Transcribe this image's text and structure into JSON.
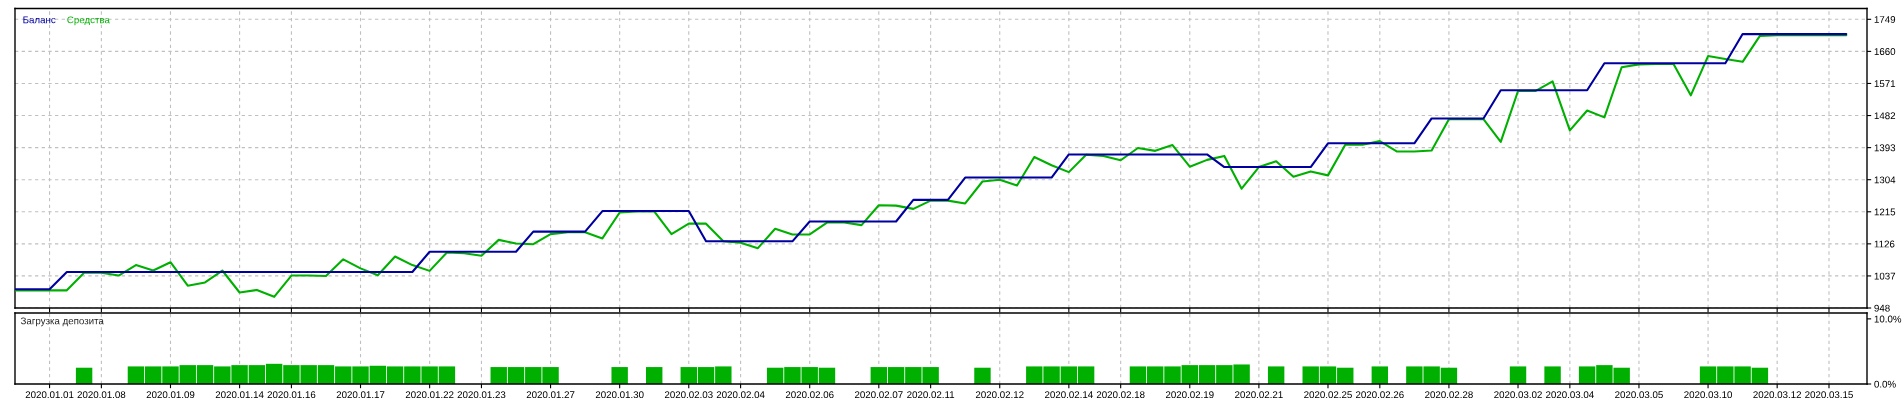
{
  "chart_data": [
    {
      "type": "line",
      "legend": "top left",
      "grid": true,
      "tick_labels": "y",
      "categories": [
        null,
        null,
        "2020.01.01",
        null,
        null,
        "2020.01.08",
        null,
        null,
        null,
        "2020.01.09",
        null,
        null,
        null,
        "2020.01.14",
        null,
        null,
        "2020.01.16",
        null,
        null,
        null,
        "2020.01.17",
        null,
        null,
        null,
        "2020.01.22",
        null,
        null,
        "2020.01.23",
        null,
        null,
        null,
        "2020.01.27",
        null,
        null,
        null,
        "2020.01.30",
        null,
        null,
        null,
        "2020.02.03",
        null,
        null,
        "2020.02.04",
        null,
        null,
        null,
        "2020.02.06",
        null,
        null,
        null,
        "2020.02.07",
        null,
        null,
        "2020.02.11",
        null,
        null,
        null,
        "2020.02.12",
        null,
        null,
        null,
        "2020.02.14",
        null,
        null,
        "2020.02.18",
        null,
        null,
        null,
        "2020.02.19",
        null,
        null,
        null,
        "2020.02.21",
        null,
        null,
        null,
        "2020.02.25",
        null,
        null,
        "2020.02.26",
        null,
        null,
        null,
        "2020.02.28",
        null,
        null,
        null,
        "2020.03.02",
        null,
        null,
        "2020.03.04",
        null,
        null,
        null,
        "2020.03.05",
        null,
        null,
        null,
        "2020.03.10",
        null,
        null,
        null,
        "2020.03.12",
        null,
        null,
        "2020.03.15",
        null
      ],
      "series": [
        {
          "name": "Баланс",
          "color": "#0000a0",
          "values": [
            1000,
            1000,
            1000,
            1048,
            1048,
            1048,
            1048,
            1048,
            1048,
            1048,
            1048,
            1048,
            1048,
            1048,
            1048,
            1048,
            1048,
            1048,
            1048,
            1048,
            1048,
            1048,
            1048,
            1048,
            1104,
            1104,
            1104,
            1104,
            1104,
            1104,
            1160,
            1160,
            1160,
            1160,
            1217,
            1217,
            1217,
            1217,
            1217,
            1217,
            1133,
            1133,
            1133,
            1133,
            1133,
            1133,
            1188,
            1188,
            1188,
            1188,
            1188,
            1188,
            1248,
            1248,
            1248,
            1310,
            1310,
            1310,
            1310,
            1310,
            1310,
            1374,
            1374,
            1374,
            1374,
            1374,
            1374,
            1374,
            1374,
            1374,
            1339,
            1339,
            1339,
            1339,
            1339,
            1339,
            1405,
            1405,
            1405,
            1405,
            1405,
            1405,
            1474,
            1474,
            1474,
            1474,
            1552,
            1552,
            1552,
            1552,
            1552,
            1552,
            1627,
            1627,
            1627,
            1627,
            1627,
            1627,
            1627,
            1627,
            1708,
            1708,
            1708,
            1708,
            1708,
            1708,
            1708
          ]
        },
        {
          "name": "Средства",
          "color": "#00b000",
          "values": [
            997,
            997,
            997,
            997,
            1046,
            1046,
            1038,
            1067,
            1052,
            1075,
            1010,
            1019,
            1052,
            991,
            998,
            979,
            1038,
            1038,
            1037,
            1083,
            1058,
            1039,
            1091,
            1067,
            1051,
            1102,
            1100,
            1093,
            1137,
            1127,
            1125,
            1153,
            1158,
            1158,
            1141,
            1213,
            1216,
            1216,
            1153,
            1182,
            1182,
            1133,
            1129,
            1114,
            1168,
            1152,
            1152,
            1185,
            1185,
            1178,
            1233,
            1232,
            1223,
            1246,
            1246,
            1238,
            1299,
            1304,
            1288,
            1367,
            1344,
            1325,
            1373,
            1370,
            1358,
            1392,
            1384,
            1400,
            1340,
            1359,
            1370,
            1279,
            1339,
            1355,
            1312,
            1327,
            1316,
            1401,
            1401,
            1411,
            1382,
            1382,
            1385,
            1472,
            1472,
            1472,
            1409,
            1550,
            1550,
            1577,
            1441,
            1496,
            1477,
            1616,
            1624,
            1625,
            1625,
            1538,
            1647,
            1639,
            1631,
            1703,
            1705,
            1705,
            1705,
            1705,
            1705
          ]
        }
      ],
      "ylim": [
        948,
        1779
      ],
      "yticks": [
        948,
        1037,
        1126,
        1215,
        1304,
        1393,
        1482,
        1571,
        1660,
        1749
      ]
    },
    {
      "type": "bar",
      "title": "Загрузка депозита",
      "color": "#00b000",
      "grid": "x",
      "categories": [
        null,
        null,
        "2020.01.01",
        null,
        null,
        "2020.01.08",
        null,
        null,
        null,
        "2020.01.09",
        null,
        null,
        null,
        "2020.01.14",
        null,
        null,
        "2020.01.16",
        null,
        null,
        null,
        "2020.01.17",
        null,
        null,
        null,
        "2020.01.22",
        null,
        null,
        "2020.01.23",
        null,
        null,
        null,
        "2020.01.27",
        null,
        null,
        null,
        "2020.01.30",
        null,
        null,
        null,
        "2020.02.03",
        null,
        null,
        "2020.02.04",
        null,
        null,
        null,
        "2020.02.06",
        null,
        null,
        null,
        "2020.02.07",
        null,
        null,
        "2020.02.11",
        null,
        null,
        null,
        "2020.02.12",
        null,
        null,
        null,
        "2020.02.14",
        null,
        null,
        "2020.02.18",
        null,
        null,
        null,
        "2020.02.19",
        null,
        null,
        null,
        "2020.02.21",
        null,
        null,
        null,
        "2020.02.25",
        null,
        null,
        "2020.02.26",
        null,
        null,
        null,
        "2020.02.28",
        null,
        null,
        null,
        "2020.03.02",
        null,
        null,
        "2020.03.04",
        null,
        null,
        null,
        "2020.03.05",
        null,
        null,
        null,
        "2020.03.10",
        null,
        null,
        null,
        "2020.03.12",
        null,
        null,
        "2020.03.15",
        null
      ],
      "values": [
        null,
        null,
        null,
        null,
        2.5,
        null,
        null,
        2.7,
        2.7,
        2.7,
        2.9,
        2.9,
        2.7,
        2.9,
        2.9,
        3.1,
        2.9,
        2.9,
        2.9,
        2.7,
        2.7,
        2.8,
        2.7,
        2.7,
        2.7,
        2.7,
        null,
        null,
        2.6,
        2.6,
        2.6,
        2.6,
        null,
        null,
        null,
        2.6,
        null,
        2.6,
        null,
        2.6,
        2.6,
        2.7,
        null,
        null,
        2.5,
        2.6,
        2.6,
        2.5,
        null,
        null,
        2.6,
        2.6,
        2.6,
        2.6,
        null,
        null,
        2.5,
        null,
        null,
        2.7,
        2.7,
        2.7,
        2.7,
        null,
        null,
        2.7,
        2.7,
        2.7,
        2.9,
        2.9,
        2.9,
        3.0,
        null,
        2.7,
        null,
        2.7,
        2.7,
        2.5,
        null,
        2.7,
        null,
        2.7,
        2.7,
        2.5,
        null,
        null,
        null,
        2.7,
        null,
        2.7,
        null,
        2.7,
        2.9,
        2.5,
        null,
        null,
        null,
        null,
        2.7,
        2.7,
        2.7,
        2.5,
        null,
        null,
        null,
        null,
        null
      ],
      "ylim": [
        0,
        10.9
      ],
      "yticks": [
        {
          "value": 10,
          "label": "10.0%"
        },
        {
          "value": 0,
          "label": "0.0%"
        }
      ]
    }
  ]
}
